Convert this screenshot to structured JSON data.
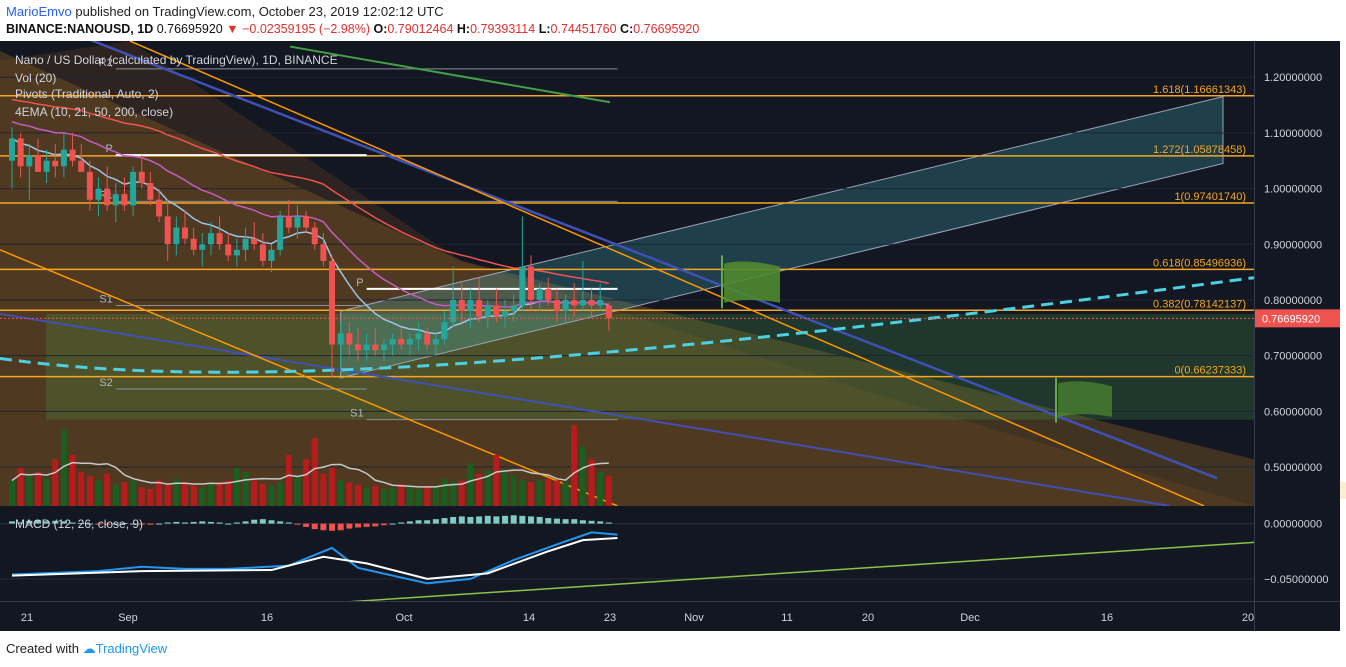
{
  "header": {
    "user": "MarioEmvo",
    "published": "published on TradingView.com, October 23, 2019 12:02:12 UTC",
    "symbol": "BINANCE:NANOUSD, 1D",
    "last": "0.76695920",
    "change": "▼ −0.02359195 (−2.98%)",
    "o_label": "O:",
    "o": "0.79012464",
    "h_label": "H:",
    "h": "0.79393114",
    "l_label": "L:",
    "l": "0.74451760",
    "c_label": "C:",
    "c": "0.76695920"
  },
  "legend": {
    "title": "Nano / US Dollar (calculated by TradingView), 1D, BINANCE",
    "vol": "Vol (20)",
    "pivots": "Pivots (Traditional, Auto, 2)",
    "ema": "4EMA (10, 21, 50, 200, close)",
    "macd": "MACD (12, 26, close, 9)"
  },
  "footer": {
    "created": "Created with",
    "brand": "TradingView"
  },
  "colors": {
    "background": "#131722",
    "up": "#26a69a",
    "down": "#ef5350",
    "volume_up": "#1b5e20",
    "volume_down": "#b71c1c",
    "fib": "#f5a623",
    "channel": "#ff9800",
    "trendline_blue": "#3f51b5",
    "trendline_cyan": "#4dd0e1",
    "ema10": "#9ec5e8",
    "ema21": "#c45cc4",
    "ema50": "#ef5350",
    "ema200": "#43a047",
    "macd_line": "#2196f3",
    "signal_line": "#ffffff",
    "macd_trend": "#8bc34a"
  },
  "chart_data": {
    "type": "candlestick",
    "symbol": "BINANCE:NANOUSD",
    "interval": "1D",
    "x_ticks": [
      "21",
      "Sep",
      "16",
      "Oct",
      "14",
      "23",
      "Nov",
      "11",
      "20",
      "Dec",
      "16",
      "20"
    ],
    "y_axis_price": {
      "range": [
        0.43,
        1.265
      ],
      "ticks": [
        "1.20000000",
        "1.10000000",
        "1.00000000",
        "0.90000000",
        "0.80000000",
        "0.70000000",
        "0.60000000",
        "0.50000000"
      ],
      "last_price_label": "0.76695920"
    },
    "y_axis_macd": {
      "range": [
        -0.07,
        0.015
      ],
      "ticks": [
        "0.00000000",
        "−0.05000000"
      ]
    },
    "fib_levels": [
      {
        "label": "1.618(1.16661343)",
        "value": 1.16661343
      },
      {
        "label": "1.272(1.05878458)",
        "value": 1.05878458
      },
      {
        "label": "1(0.97401740)",
        "value": 0.9740174
      },
      {
        "label": "0.618(0.85496936)",
        "value": 0.85496936
      },
      {
        "label": "0.382(0.78142137)",
        "value": 0.78142137
      },
      {
        "label": "0(0.66237333)",
        "value": 0.66237333
      }
    ],
    "pivots": [
      {
        "label": "R2",
        "value": 1.215,
        "from_day": 12,
        "to_day": 70
      },
      {
        "label": "P",
        "value": 1.06,
        "from_day": 12,
        "to_day": 41
      },
      {
        "label": "R1",
        "value": 0.977,
        "from_day": 12,
        "to_day": 70
      },
      {
        "label": "S1",
        "value": 0.79,
        "from_day": 12,
        "to_day": 41
      },
      {
        "label": "P",
        "value": 0.82,
        "from_day": 41,
        "to_day": 70
      },
      {
        "label": "S2",
        "value": 0.64,
        "from_day": 12,
        "to_day": 41
      },
      {
        "label": "S1",
        "value": 0.585,
        "from_day": 41,
        "to_day": 70
      }
    ],
    "candles": [
      [
        1.05,
        1.11,
        1.0,
        1.09
      ],
      [
        1.09,
        1.1,
        1.02,
        1.04
      ],
      [
        1.04,
        1.08,
        0.98,
        1.06
      ],
      [
        1.06,
        1.09,
        1.03,
        1.03
      ],
      [
        1.03,
        1.07,
        1.01,
        1.05
      ],
      [
        1.05,
        1.08,
        1.02,
        1.04
      ],
      [
        1.04,
        1.1,
        1.02,
        1.07
      ],
      [
        1.07,
        1.1,
        1.04,
        1.05
      ],
      [
        1.05,
        1.08,
        1.03,
        1.03
      ],
      [
        1.03,
        1.05,
        0.96,
        0.98
      ],
      [
        0.98,
        1.02,
        0.95,
        1.0
      ],
      [
        1.0,
        1.04,
        0.96,
        0.97
      ],
      [
        0.97,
        1.01,
        0.94,
        0.99
      ],
      [
        0.99,
        1.02,
        0.96,
        0.97
      ],
      [
        0.97,
        1.04,
        0.95,
        1.03
      ],
      [
        1.03,
        1.06,
        1.0,
        1.01
      ],
      [
        1.01,
        1.03,
        0.97,
        0.98
      ],
      [
        0.98,
        1.0,
        0.94,
        0.95
      ],
      [
        0.95,
        0.98,
        0.87,
        0.9
      ],
      [
        0.9,
        0.95,
        0.88,
        0.93
      ],
      [
        0.93,
        0.96,
        0.9,
        0.91
      ],
      [
        0.91,
        0.93,
        0.88,
        0.89
      ],
      [
        0.89,
        0.92,
        0.86,
        0.9
      ],
      [
        0.9,
        0.94,
        0.88,
        0.92
      ],
      [
        0.92,
        0.95,
        0.89,
        0.9
      ],
      [
        0.9,
        0.92,
        0.87,
        0.88
      ],
      [
        0.88,
        0.91,
        0.86,
        0.89
      ],
      [
        0.89,
        0.93,
        0.87,
        0.91
      ],
      [
        0.91,
        0.94,
        0.89,
        0.9
      ],
      [
        0.9,
        0.92,
        0.86,
        0.87
      ],
      [
        0.87,
        0.9,
        0.85,
        0.89
      ],
      [
        0.89,
        0.96,
        0.88,
        0.95
      ],
      [
        0.95,
        0.98,
        0.92,
        0.93
      ],
      [
        0.93,
        0.97,
        0.91,
        0.95
      ],
      [
        0.95,
        0.96,
        0.92,
        0.93
      ],
      [
        0.93,
        0.94,
        0.89,
        0.9
      ],
      [
        0.9,
        0.92,
        0.86,
        0.87
      ],
      [
        0.87,
        0.88,
        0.66,
        0.72
      ],
      [
        0.72,
        0.76,
        0.68,
        0.74
      ],
      [
        0.74,
        0.76,
        0.7,
        0.72
      ],
      [
        0.72,
        0.75,
        0.69,
        0.71
      ],
      [
        0.71,
        0.74,
        0.69,
        0.72
      ],
      [
        0.72,
        0.75,
        0.7,
        0.71
      ],
      [
        0.71,
        0.73,
        0.69,
        0.72
      ],
      [
        0.72,
        0.74,
        0.7,
        0.73
      ],
      [
        0.73,
        0.75,
        0.71,
        0.72
      ],
      [
        0.72,
        0.74,
        0.7,
        0.73
      ],
      [
        0.73,
        0.76,
        0.71,
        0.74
      ],
      [
        0.74,
        0.75,
        0.71,
        0.72
      ],
      [
        0.72,
        0.74,
        0.7,
        0.73
      ],
      [
        0.73,
        0.78,
        0.72,
        0.76
      ],
      [
        0.76,
        0.86,
        0.75,
        0.8
      ],
      [
        0.8,
        0.83,
        0.76,
        0.78
      ],
      [
        0.78,
        0.82,
        0.75,
        0.8
      ],
      [
        0.8,
        0.84,
        0.76,
        0.77
      ],
      [
        0.77,
        0.8,
        0.75,
        0.79
      ],
      [
        0.79,
        0.82,
        0.76,
        0.77
      ],
      [
        0.77,
        0.8,
        0.75,
        0.78
      ],
      [
        0.78,
        0.81,
        0.76,
        0.79
      ],
      [
        0.79,
        0.95,
        0.78,
        0.86
      ],
      [
        0.86,
        0.88,
        0.78,
        0.8
      ],
      [
        0.8,
        0.83,
        0.78,
        0.82
      ],
      [
        0.82,
        0.84,
        0.79,
        0.8
      ],
      [
        0.8,
        0.82,
        0.76,
        0.78
      ],
      [
        0.78,
        0.81,
        0.76,
        0.8
      ],
      [
        0.8,
        0.83,
        0.77,
        0.79
      ],
      [
        0.79,
        0.87,
        0.78,
        0.8
      ],
      [
        0.8,
        0.82,
        0.77,
        0.79
      ],
      [
        0.79,
        0.83,
        0.78,
        0.8
      ],
      [
        0.7901,
        0.7939,
        0.7445,
        0.767
      ]
    ],
    "volume": [
      0.3,
      0.45,
      0.35,
      0.4,
      0.32,
      0.55,
      0.9,
      0.6,
      0.4,
      0.35,
      0.3,
      0.38,
      0.25,
      0.28,
      0.3,
      0.22,
      0.2,
      0.3,
      0.25,
      0.32,
      0.28,
      0.24,
      0.22,
      0.26,
      0.28,
      0.3,
      0.45,
      0.4,
      0.3,
      0.26,
      0.24,
      0.28,
      0.6,
      0.35,
      0.55,
      0.8,
      0.38,
      0.45,
      0.3,
      0.28,
      0.25,
      0.22,
      0.24,
      0.2,
      0.22,
      0.26,
      0.24,
      0.2,
      0.22,
      0.24,
      0.32,
      0.28,
      0.3,
      0.5,
      0.38,
      0.42,
      0.6,
      0.4,
      0.35,
      0.3,
      0.28,
      0.3,
      0.32,
      0.3,
      0.28,
      0.95,
      0.7,
      0.55,
      0.4,
      0.35
    ],
    "macd_histogram": [
      0.002,
      0.001,
      0.0025,
      0.003,
      0.002,
      0.0025,
      0.002,
      0.001,
      0.0005,
      0.0,
      -0.0005,
      -0.001,
      0.0,
      0.0005,
      0.0,
      -0.0005,
      -0.001,
      0.0,
      0.001,
      0.0015,
      0.001,
      0.0015,
      0.002,
      0.0015,
      0.001,
      0.0,
      0.001,
      0.002,
      0.0035,
      0.004,
      0.003,
      0.002,
      0.001,
      -0.001,
      -0.003,
      -0.005,
      -0.006,
      -0.0065,
      -0.006,
      -0.0045,
      -0.0035,
      -0.003,
      -0.0025,
      -0.0015,
      0.0,
      0.001,
      0.002,
      0.003,
      0.003,
      0.004,
      0.005,
      0.006,
      0.0065,
      0.006,
      0.0065,
      0.007,
      0.0065,
      0.007,
      0.0075,
      0.007,
      0.0065,
      0.006,
      0.005,
      0.0045,
      0.004,
      0.004,
      0.003,
      0.0025,
      0.002,
      0.001
    ],
    "ema_periods": [
      10,
      21,
      50,
      200
    ],
    "price_last": 0.7669592
  }
}
